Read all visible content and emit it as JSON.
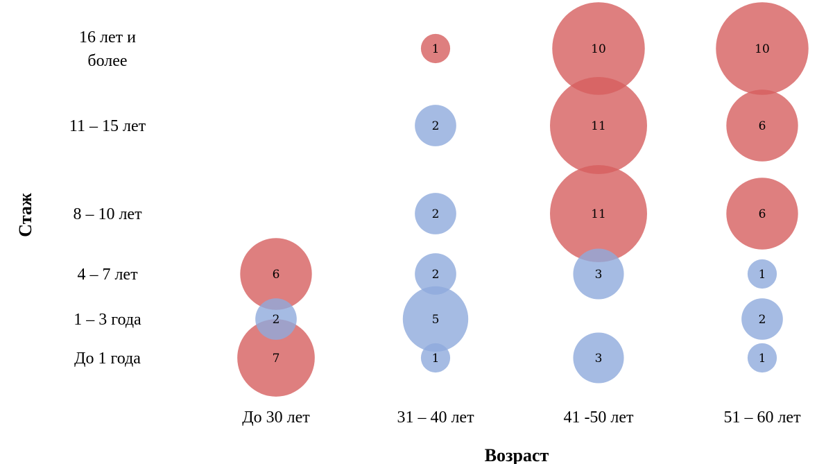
{
  "chart_data": {
    "type": "bubble",
    "title": "",
    "xlabel": "Возраст",
    "ylabel": "Стаж",
    "x_categories": [
      "До 30 лет",
      "31 – 40 лет",
      "41 -50 лет",
      "51 – 60 лет"
    ],
    "y_categories": [
      [
        "До 1 года"
      ],
      [
        "1 – 3 года"
      ],
      [
        "4 – 7 лет"
      ],
      [
        "8 – 10 лет"
      ],
      [
        "11 – 15 лет"
      ],
      [
        "16 лет и",
        "более"
      ]
    ],
    "colors": {
      "series_a": "#d65f5f",
      "series_b": "#8eaadc"
    },
    "points": [
      {
        "x": 0,
        "y": 0,
        "value": 7,
        "series": "series_a"
      },
      {
        "x": 0,
        "y": 1,
        "value": 2,
        "series": "series_b"
      },
      {
        "x": 0,
        "y": 2,
        "value": 6,
        "series": "series_a"
      },
      {
        "x": 1,
        "y": 0,
        "value": 1,
        "series": "series_b"
      },
      {
        "x": 1,
        "y": 1,
        "value": 5,
        "series": "series_b"
      },
      {
        "x": 1,
        "y": 2,
        "value": 2,
        "series": "series_b"
      },
      {
        "x": 1,
        "y": 3,
        "value": 2,
        "series": "series_b"
      },
      {
        "x": 1,
        "y": 4,
        "value": 2,
        "series": "series_b"
      },
      {
        "x": 1,
        "y": 5,
        "value": 1,
        "series": "series_a"
      },
      {
        "x": 2,
        "y": 0,
        "value": 3,
        "series": "series_b"
      },
      {
        "x": 2,
        "y": 2,
        "value": 3,
        "series": "series_b"
      },
      {
        "x": 2,
        "y": 3,
        "value": 11,
        "series": "series_a"
      },
      {
        "x": 2,
        "y": 4,
        "value": 11,
        "series": "series_a"
      },
      {
        "x": 2,
        "y": 5,
        "value": 10,
        "series": "series_a"
      },
      {
        "x": 3,
        "y": 0,
        "value": 1,
        "series": "series_b"
      },
      {
        "x": 3,
        "y": 1,
        "value": 2,
        "series": "series_b"
      },
      {
        "x": 3,
        "y": 2,
        "value": 1,
        "series": "series_b"
      },
      {
        "x": 3,
        "y": 3,
        "value": 6,
        "series": "series_a"
      },
      {
        "x": 3,
        "y": 4,
        "value": 6,
        "series": "series_a"
      },
      {
        "x": 3,
        "y": 5,
        "value": 10,
        "series": "series_a"
      }
    ]
  }
}
